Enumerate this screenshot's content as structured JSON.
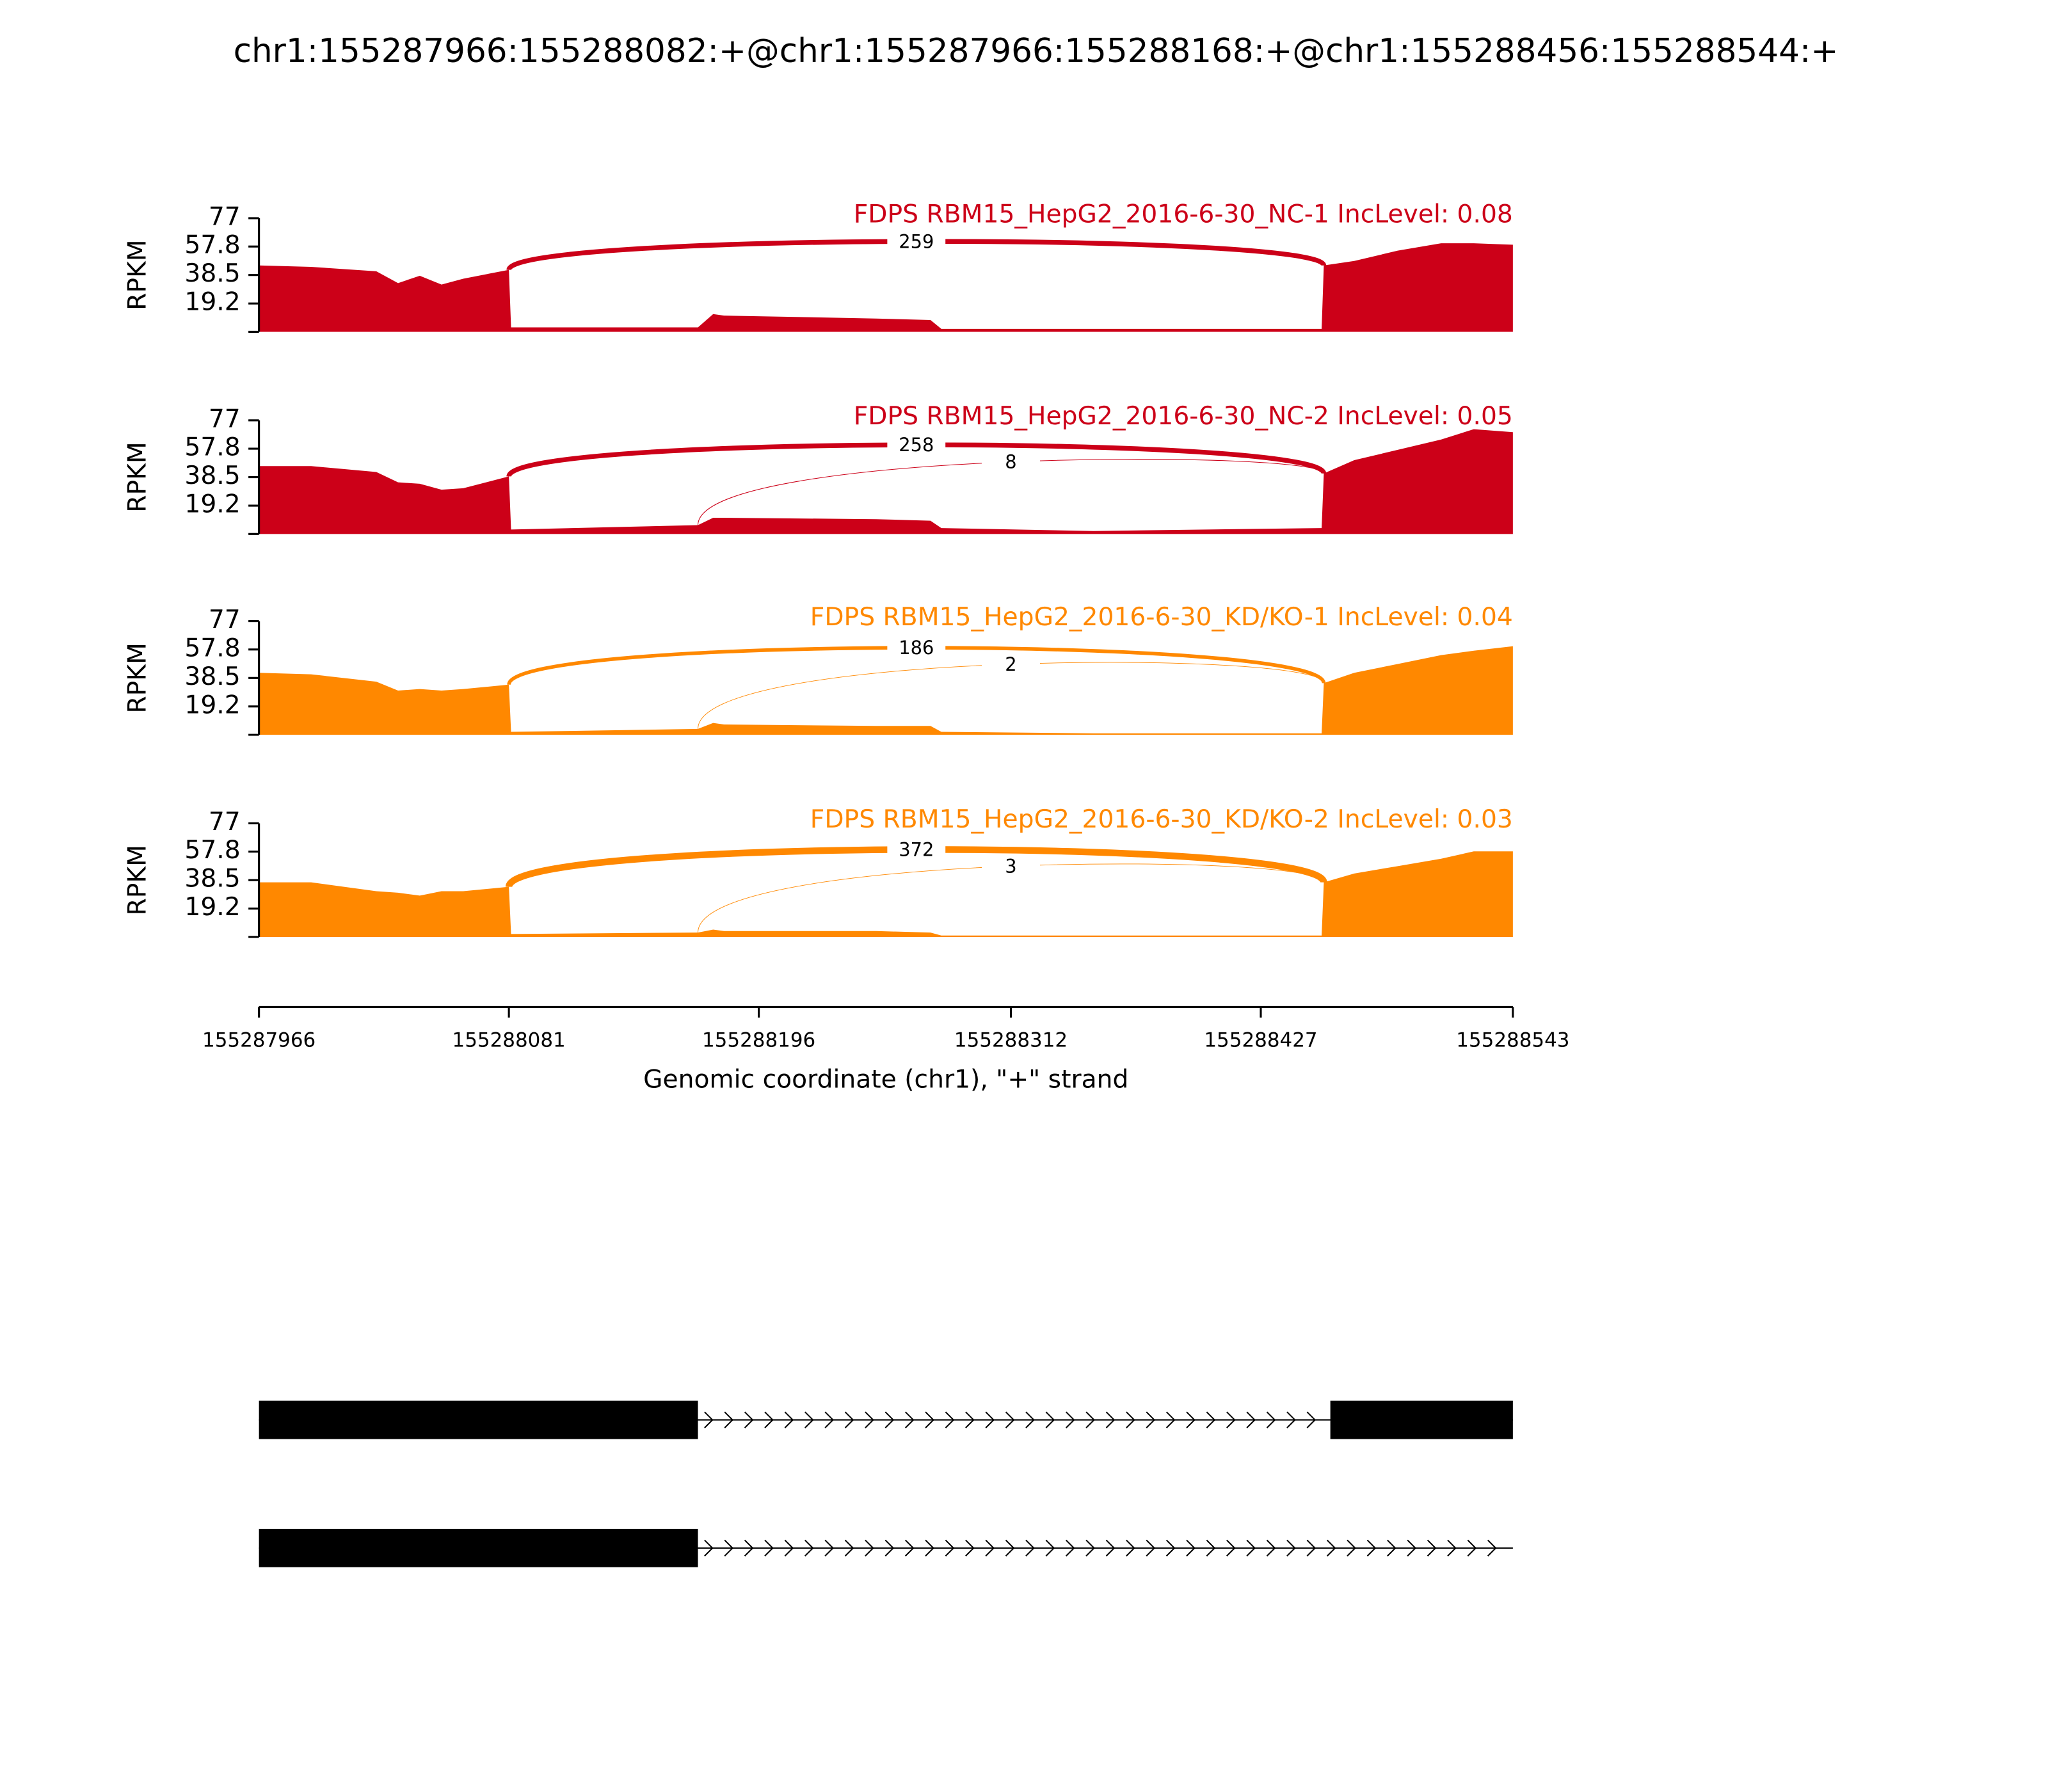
{
  "title": "chr1:155287966:155288082:+@chr1:155287966:155288168:+@chr1:155288456:155288544:+",
  "chart_data": [
    {
      "type": "area",
      "title": "FDPS RBM15_HepG2_2016-6-30_NC-1 IncLevel: 0.08",
      "ylabel": "RPKM",
      "color": "#cc0018",
      "xlim": [
        155287966,
        155288543
      ],
      "ylim": [
        0,
        77
      ],
      "yticks": [
        19.2,
        38.5,
        57.8,
        77
      ],
      "x": [
        155287966,
        155287990,
        155288020,
        155288030,
        155288040,
        155288050,
        155288060,
        155288081,
        155288082,
        155288168,
        155288175,
        155288180,
        155288250,
        155288275,
        155288280,
        155288350,
        155288455,
        155288456,
        155288470,
        155288490,
        155288510,
        155288525,
        155288543
      ],
      "values": [
        45,
        44,
        41,
        33,
        38,
        32,
        36,
        42,
        3,
        3,
        12,
        11,
        9,
        8,
        2,
        2,
        2,
        45,
        48,
        55,
        60,
        60,
        59
      ],
      "junctions": [
        {
          "start": 155288081,
          "end": 155288456,
          "count": 259
        }
      ]
    },
    {
      "type": "area",
      "title": "FDPS RBM15_HepG2_2016-6-30_NC-2 IncLevel: 0.05",
      "ylabel": "RPKM",
      "color": "#cc0018",
      "xlim": [
        155287966,
        155288543
      ],
      "ylim": [
        0,
        77
      ],
      "yticks": [
        19.2,
        38.5,
        57.8,
        77
      ],
      "x": [
        155287966,
        155287990,
        155288020,
        155288030,
        155288040,
        155288050,
        155288060,
        155288081,
        155288082,
        155288168,
        155288175,
        155288180,
        155288250,
        155288275,
        155288280,
        155288350,
        155288455,
        155288456,
        155288470,
        155288490,
        155288510,
        155288525,
        155288543
      ],
      "values": [
        46,
        46,
        42,
        35,
        34,
        30,
        31,
        39,
        3,
        6,
        11,
        11,
        10,
        9,
        4,
        2,
        4,
        41,
        50,
        57,
        64,
        71,
        69
      ],
      "junctions": [
        {
          "start": 155288081,
          "end": 155288456,
          "count": 258
        },
        {
          "start": 155288168,
          "end": 155288456,
          "count": 8
        }
      ]
    },
    {
      "type": "area",
      "title": "FDPS RBM15_HepG2_2016-6-30_KD/KO-1 IncLevel: 0.04",
      "ylabel": "RPKM",
      "color": "#ff8800",
      "xlim": [
        155287966,
        155288543
      ],
      "ylim": [
        0,
        77
      ],
      "yticks": [
        19.2,
        38.5,
        57.8,
        77
      ],
      "x": [
        155287966,
        155287990,
        155288020,
        155288030,
        155288040,
        155288050,
        155288060,
        155288081,
        155288082,
        155288168,
        155288175,
        155288180,
        155288250,
        155288275,
        155288280,
        155288350,
        155288455,
        155288456,
        155288470,
        155288490,
        155288510,
        155288525,
        155288543
      ],
      "values": [
        42,
        41,
        36,
        30,
        31,
        30,
        31,
        34,
        2,
        4,
        8,
        7,
        6,
        6,
        2,
        1,
        1,
        35,
        42,
        48,
        54,
        57,
        60
      ],
      "junctions": [
        {
          "start": 155288081,
          "end": 155288456,
          "count": 186
        },
        {
          "start": 155288168,
          "end": 155288456,
          "count": 2
        }
      ]
    },
    {
      "type": "area",
      "title": "FDPS RBM15_HepG2_2016-6-30_KD/KO-2 IncLevel: 0.03",
      "ylabel": "RPKM",
      "color": "#ff8800",
      "xlim": [
        155287966,
        155288543
      ],
      "ylim": [
        0,
        77
      ],
      "yticks": [
        19.2,
        38.5,
        57.8,
        77
      ],
      "xticks": [
        155287966,
        155288081,
        155288196,
        155288312,
        155288427,
        155288543
      ],
      "xlabel": "Genomic coordinate (chr1), \"+\" strand",
      "x": [
        155287966,
        155287990,
        155288020,
        155288030,
        155288040,
        155288050,
        155288060,
        155288081,
        155288082,
        155288168,
        155288175,
        155288180,
        155288250,
        155288275,
        155288280,
        155288350,
        155288455,
        155288456,
        155288470,
        155288490,
        155288510,
        155288525,
        155288543
      ],
      "values": [
        37,
        37,
        31,
        30,
        28,
        31,
        31,
        34,
        2,
        3,
        5,
        4,
        4,
        3,
        1,
        1,
        1,
        37,
        43,
        48,
        53,
        58,
        58
      ],
      "junctions": [
        {
          "start": 155288081,
          "end": 155288456,
          "count": 372
        },
        {
          "start": 155288168,
          "end": 155288456,
          "count": 3
        }
      ]
    }
  ],
  "transcripts": [
    {
      "span": [
        155287966,
        155288543
      ],
      "exons": [
        [
          155287966,
          155288168
        ],
        [
          155288459,
          155288543
        ]
      ]
    },
    {
      "span": [
        155287966,
        155288543
      ],
      "exons": [
        [
          155287966,
          155288168
        ]
      ]
    }
  ]
}
